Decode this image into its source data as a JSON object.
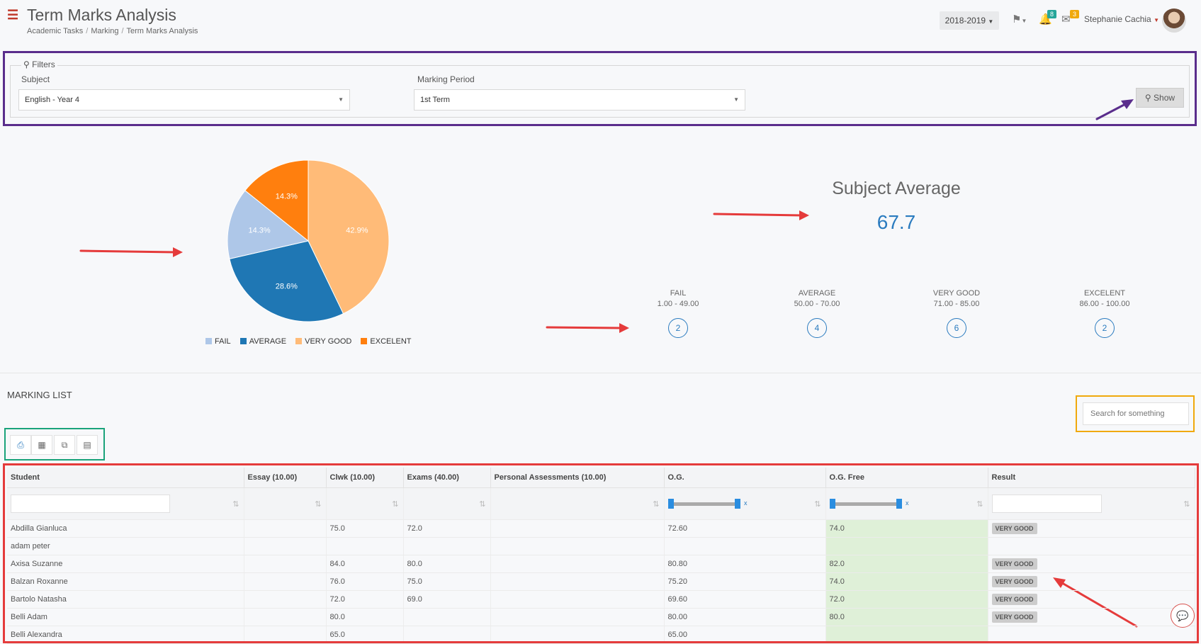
{
  "header": {
    "title": "Term Marks Analysis",
    "breadcrumb": [
      "Academic Tasks",
      "Marking",
      "Term Marks Analysis"
    ],
    "year": "2018-2019",
    "notifications_badge": "8",
    "messages_badge": "3",
    "user_name": "Stephanie Cachia"
  },
  "filters": {
    "legend": "Filters",
    "subject_label": "Subject",
    "subject_value": "English - Year 4",
    "period_label": "Marking Period",
    "period_value": "1st Term",
    "show_label": "Show"
  },
  "chart_data": {
    "type": "pie",
    "categories": [
      "FAIL",
      "AVERAGE",
      "VERY GOOD",
      "EXCELENT"
    ],
    "values": [
      14.3,
      28.6,
      42.9,
      14.3
    ],
    "labels": [
      "14.3%",
      "28.6%",
      "42.9%",
      "14.3%"
    ],
    "colors": [
      "#aec7e8",
      "#1f77b4",
      "#ffbb78",
      "#ff7f0e"
    ],
    "legend_position": "bottom"
  },
  "stats": {
    "average_title": "Subject Average",
    "average_value": "67.7",
    "categories": [
      {
        "name": "FAIL",
        "range": "1.00 - 49.00",
        "count": "2"
      },
      {
        "name": "AVERAGE",
        "range": "50.00 - 70.00",
        "count": "4"
      },
      {
        "name": "VERY GOOD",
        "range": "71.00 - 85.00",
        "count": "6"
      },
      {
        "name": "EXCELENT",
        "range": "86.00 - 100.00",
        "count": "2"
      }
    ]
  },
  "marking_list": {
    "title": "MARKING LIST",
    "search_placeholder": "Search for something",
    "tools": [
      "printer-icon",
      "excel-icon",
      "copy-icon",
      "pdf-icon"
    ],
    "columns": [
      "Student",
      "Essay (10.00)",
      "Clwk (10.00)",
      "Exams (40.00)",
      "Personal Assessments (10.00)",
      "O.G.",
      "O.G. Free",
      "Result"
    ],
    "rows": [
      {
        "student": "Abdilla Gianluca",
        "essay": "",
        "clwk": "75.0",
        "exams": "72.0",
        "pa": "",
        "og": "72.60",
        "ogfree": "74.0",
        "result": "VERY GOOD"
      },
      {
        "student": "adam peter",
        "essay": "",
        "clwk": "",
        "exams": "",
        "pa": "",
        "og": "",
        "ogfree": "",
        "result": ""
      },
      {
        "student": "Axisa Suzanne",
        "essay": "",
        "clwk": "84.0",
        "exams": "80.0",
        "pa": "",
        "og": "80.80",
        "ogfree": "82.0",
        "result": "VERY GOOD"
      },
      {
        "student": "Balzan Roxanne",
        "essay": "",
        "clwk": "76.0",
        "exams": "75.0",
        "pa": "",
        "og": "75.20",
        "ogfree": "74.0",
        "result": "VERY GOOD"
      },
      {
        "student": "Bartolo Natasha",
        "essay": "",
        "clwk": "72.0",
        "exams": "69.0",
        "pa": "",
        "og": "69.60",
        "ogfree": "72.0",
        "result": "VERY GOOD"
      },
      {
        "student": "Belli Adam",
        "essay": "",
        "clwk": "80.0",
        "exams": "",
        "pa": "",
        "og": "80.00",
        "ogfree": "80.0",
        "result": "VERY GOOD"
      },
      {
        "student": "Belli Alexandra",
        "essay": "",
        "clwk": "65.0",
        "exams": "",
        "pa": "",
        "og": "65.00",
        "ogfree": "",
        "result": ""
      }
    ]
  },
  "annotation_colors": {
    "filters": "#5a2d8c",
    "search": "#f0a90c",
    "tools": "#1aa37a",
    "table": "#e53b3b",
    "arrow": "#e53b3b"
  }
}
